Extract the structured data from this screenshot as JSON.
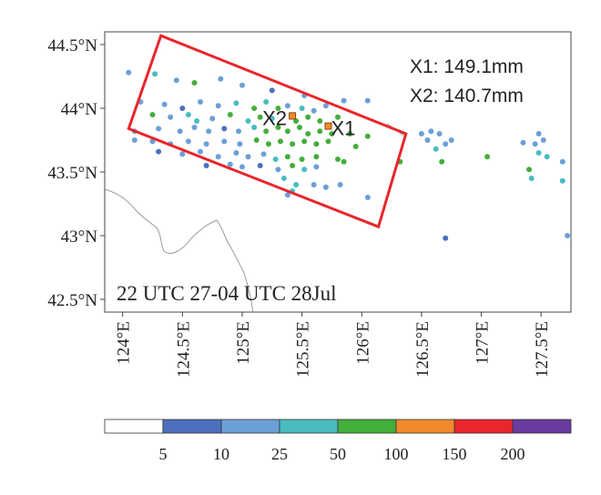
{
  "map": {
    "time_label": "22 UTC 27-04 UTC 28Jul",
    "lat_ticks": [
      {
        "label": "44.5°N",
        "value": 44.5
      },
      {
        "label": "44°N",
        "value": 44.0
      },
      {
        "label": "43.5°N",
        "value": 43.5
      },
      {
        "label": "43°N",
        "value": 43.0
      },
      {
        "label": "42.5°N",
        "value": 42.5
      }
    ],
    "lon_ticks": [
      {
        "label": "124°E",
        "value": 124.0
      },
      {
        "label": "124.5°E",
        "value": 124.5
      },
      {
        "label": "125°E",
        "value": 125.0
      },
      {
        "label": "125.5°E",
        "value": 125.5
      },
      {
        "label": "126°E",
        "value": 126.0
      },
      {
        "label": "126.5°E",
        "value": 126.5
      },
      {
        "label": "127°E",
        "value": 127.0
      },
      {
        "label": "127.5°E",
        "value": 127.5
      }
    ],
    "extent": {
      "lon": [
        123.85,
        127.75
      ],
      "lat": [
        42.4,
        44.6
      ]
    },
    "annotations": {
      "x1_text": "X1: 149.1mm",
      "x2_text": "X2: 140.7mm"
    },
    "markers": [
      {
        "label": "X1",
        "lon": 125.72,
        "lat": 43.86
      },
      {
        "label": "X2",
        "lon": 125.42,
        "lat": 43.94
      }
    ],
    "box_color": "#e8262b",
    "box_corners": [
      {
        "lon": 124.32,
        "lat": 44.57
      },
      {
        "lon": 126.37,
        "lat": 43.8
      },
      {
        "lon": 126.14,
        "lat": 43.07
      },
      {
        "lon": 124.05,
        "lat": 43.84
      }
    ],
    "stations": [
      {
        "lon": 124.05,
        "lat": 44.28,
        "c": 1
      },
      {
        "lon": 124.27,
        "lat": 44.27,
        "c": 2
      },
      {
        "lon": 124.45,
        "lat": 44.22,
        "c": 1
      },
      {
        "lon": 124.6,
        "lat": 44.2,
        "c": 3
      },
      {
        "lon": 124.82,
        "lat": 44.23,
        "c": 1
      },
      {
        "lon": 125.0,
        "lat": 44.18,
        "c": 1
      },
      {
        "lon": 125.25,
        "lat": 44.14,
        "c": 0
      },
      {
        "lon": 125.52,
        "lat": 44.1,
        "c": 1
      },
      {
        "lon": 125.7,
        "lat": 44.02,
        "c": 1
      },
      {
        "lon": 125.85,
        "lat": 44.06,
        "c": 1
      },
      {
        "lon": 126.05,
        "lat": 44.06,
        "c": 1
      },
      {
        "lon": 124.15,
        "lat": 44.05,
        "c": 1
      },
      {
        "lon": 124.35,
        "lat": 44.03,
        "c": 1
      },
      {
        "lon": 124.5,
        "lat": 44.0,
        "c": 0
      },
      {
        "lon": 124.65,
        "lat": 44.05,
        "c": 1
      },
      {
        "lon": 124.8,
        "lat": 44.02,
        "c": 1
      },
      {
        "lon": 124.95,
        "lat": 44.04,
        "c": 2
      },
      {
        "lon": 125.1,
        "lat": 44.0,
        "c": 3
      },
      {
        "lon": 125.2,
        "lat": 44.05,
        "c": 2
      },
      {
        "lon": 125.3,
        "lat": 44.0,
        "c": 3
      },
      {
        "lon": 125.38,
        "lat": 44.02,
        "c": 1
      },
      {
        "lon": 125.5,
        "lat": 44.0,
        "c": 2
      },
      {
        "lon": 125.6,
        "lat": 43.98,
        "c": 1
      },
      {
        "lon": 124.25,
        "lat": 43.95,
        "c": 3
      },
      {
        "lon": 124.4,
        "lat": 43.93,
        "c": 1
      },
      {
        "lon": 124.55,
        "lat": 43.95,
        "c": 2
      },
      {
        "lon": 124.62,
        "lat": 43.9,
        "c": 2
      },
      {
        "lon": 124.75,
        "lat": 43.92,
        "c": 1
      },
      {
        "lon": 124.9,
        "lat": 43.95,
        "c": 3
      },
      {
        "lon": 125.05,
        "lat": 43.9,
        "c": 2
      },
      {
        "lon": 125.15,
        "lat": 43.93,
        "c": 3
      },
      {
        "lon": 125.25,
        "lat": 43.92,
        "c": 2
      },
      {
        "lon": 125.45,
        "lat": 43.9,
        "c": 3
      },
      {
        "lon": 125.55,
        "lat": 43.93,
        "c": 3
      },
      {
        "lon": 125.65,
        "lat": 43.9,
        "c": 3
      },
      {
        "lon": 125.8,
        "lat": 43.93,
        "c": 3
      },
      {
        "lon": 124.1,
        "lat": 43.82,
        "c": 1
      },
      {
        "lon": 124.3,
        "lat": 43.84,
        "c": 1
      },
      {
        "lon": 124.48,
        "lat": 43.82,
        "c": 1
      },
      {
        "lon": 124.6,
        "lat": 43.85,
        "c": 1
      },
      {
        "lon": 124.72,
        "lat": 43.82,
        "c": 1
      },
      {
        "lon": 124.85,
        "lat": 43.84,
        "c": 0
      },
      {
        "lon": 124.97,
        "lat": 43.82,
        "c": 1
      },
      {
        "lon": 125.1,
        "lat": 43.85,
        "c": 2
      },
      {
        "lon": 125.2,
        "lat": 43.82,
        "c": 3
      },
      {
        "lon": 125.3,
        "lat": 43.85,
        "c": 3
      },
      {
        "lon": 125.38,
        "lat": 43.82,
        "c": 3
      },
      {
        "lon": 125.48,
        "lat": 43.85,
        "c": 3
      },
      {
        "lon": 125.55,
        "lat": 43.8,
        "c": 3
      },
      {
        "lon": 125.65,
        "lat": 43.82,
        "c": 3
      },
      {
        "lon": 125.75,
        "lat": 43.8,
        "c": 3
      },
      {
        "lon": 125.9,
        "lat": 43.8,
        "c": 3
      },
      {
        "lon": 126.05,
        "lat": 43.78,
        "c": 3
      },
      {
        "lon": 124.1,
        "lat": 43.75,
        "c": 1
      },
      {
        "lon": 124.25,
        "lat": 43.74,
        "c": 1
      },
      {
        "lon": 124.4,
        "lat": 43.72,
        "c": 1
      },
      {
        "lon": 124.55,
        "lat": 43.74,
        "c": 1
      },
      {
        "lon": 124.7,
        "lat": 43.72,
        "c": 1
      },
      {
        "lon": 124.85,
        "lat": 43.74,
        "c": 1
      },
      {
        "lon": 124.98,
        "lat": 43.72,
        "c": 1
      },
      {
        "lon": 125.12,
        "lat": 43.75,
        "c": 3
      },
      {
        "lon": 125.22,
        "lat": 43.72,
        "c": 3
      },
      {
        "lon": 125.32,
        "lat": 43.74,
        "c": 3
      },
      {
        "lon": 125.42,
        "lat": 43.72,
        "c": 3
      },
      {
        "lon": 125.52,
        "lat": 43.74,
        "c": 3
      },
      {
        "lon": 125.62,
        "lat": 43.72,
        "c": 3
      },
      {
        "lon": 125.72,
        "lat": 43.74,
        "c": 3
      },
      {
        "lon": 125.95,
        "lat": 43.7,
        "c": 3
      },
      {
        "lon": 124.3,
        "lat": 43.66,
        "c": 0
      },
      {
        "lon": 124.5,
        "lat": 43.64,
        "c": 1
      },
      {
        "lon": 124.65,
        "lat": 43.66,
        "c": 1
      },
      {
        "lon": 124.8,
        "lat": 43.62,
        "c": 1
      },
      {
        "lon": 124.95,
        "lat": 43.65,
        "c": 1
      },
      {
        "lon": 125.05,
        "lat": 43.62,
        "c": 1
      },
      {
        "lon": 125.18,
        "lat": 43.64,
        "c": 1
      },
      {
        "lon": 125.28,
        "lat": 43.6,
        "c": 2
      },
      {
        "lon": 125.38,
        "lat": 43.62,
        "c": 3
      },
      {
        "lon": 125.5,
        "lat": 43.6,
        "c": 3
      },
      {
        "lon": 125.62,
        "lat": 43.62,
        "c": 3
      },
      {
        "lon": 125.8,
        "lat": 43.6,
        "c": 3
      },
      {
        "lon": 125.85,
        "lat": 43.58,
        "c": 3
      },
      {
        "lon": 124.7,
        "lat": 43.55,
        "c": 0
      },
      {
        "lon": 124.9,
        "lat": 43.56,
        "c": 1
      },
      {
        "lon": 125.0,
        "lat": 43.54,
        "c": 1
      },
      {
        "lon": 125.15,
        "lat": 43.55,
        "c": 0
      },
      {
        "lon": 125.3,
        "lat": 43.52,
        "c": 1
      },
      {
        "lon": 125.42,
        "lat": 43.55,
        "c": 3
      },
      {
        "lon": 125.52,
        "lat": 43.52,
        "c": 2
      },
      {
        "lon": 125.62,
        "lat": 43.54,
        "c": 1
      },
      {
        "lon": 125.35,
        "lat": 43.45,
        "c": 2
      },
      {
        "lon": 125.45,
        "lat": 43.4,
        "c": 2
      },
      {
        "lon": 125.42,
        "lat": 43.35,
        "c": 2
      },
      {
        "lon": 125.6,
        "lat": 43.4,
        "c": 1
      },
      {
        "lon": 125.7,
        "lat": 43.38,
        "c": 1
      },
      {
        "lon": 125.82,
        "lat": 43.4,
        "c": 1
      },
      {
        "lon": 125.38,
        "lat": 43.32,
        "c": 1
      },
      {
        "lon": 126.05,
        "lat": 43.3,
        "c": 1
      },
      {
        "lon": 126.5,
        "lat": 43.8,
        "c": 1
      },
      {
        "lon": 126.58,
        "lat": 43.82,
        "c": 1
      },
      {
        "lon": 126.65,
        "lat": 43.8,
        "c": 1
      },
      {
        "lon": 126.55,
        "lat": 43.75,
        "c": 1
      },
      {
        "lon": 126.7,
        "lat": 43.72,
        "c": 1
      },
      {
        "lon": 126.75,
        "lat": 43.75,
        "c": 1
      },
      {
        "lon": 126.62,
        "lat": 43.68,
        "c": 2
      },
      {
        "lon": 126.67,
        "lat": 43.58,
        "c": 3
      },
      {
        "lon": 126.32,
        "lat": 43.58,
        "c": 3
      },
      {
        "lon": 127.05,
        "lat": 43.62,
        "c": 3
      },
      {
        "lon": 127.35,
        "lat": 43.73,
        "c": 1
      },
      {
        "lon": 127.45,
        "lat": 43.72,
        "c": 1
      },
      {
        "lon": 127.52,
        "lat": 43.75,
        "c": 1
      },
      {
        "lon": 127.48,
        "lat": 43.65,
        "c": 2
      },
      {
        "lon": 127.55,
        "lat": 43.62,
        "c": 2
      },
      {
        "lon": 127.4,
        "lat": 43.52,
        "c": 3
      },
      {
        "lon": 127.42,
        "lat": 43.45,
        "c": 2
      },
      {
        "lon": 127.68,
        "lat": 43.58,
        "c": 1
      },
      {
        "lon": 127.68,
        "lat": 43.43,
        "c": 2
      },
      {
        "lon": 126.7,
        "lat": 42.98,
        "c": 0
      },
      {
        "lon": 127.72,
        "lat": 43.0,
        "c": 1
      },
      {
        "lon": 127.48,
        "lat": 43.8,
        "c": 1
      }
    ]
  },
  "legend": {
    "colors": [
      "#ffffff",
      "#4c6fbd",
      "#6b9fd8",
      "#49bcc0",
      "#44ae3b",
      "#f08a2c",
      "#e8262b",
      "#6a3aa0"
    ],
    "labels": [
      "5",
      "10",
      "25",
      "50",
      "100",
      "150",
      "200"
    ]
  }
}
